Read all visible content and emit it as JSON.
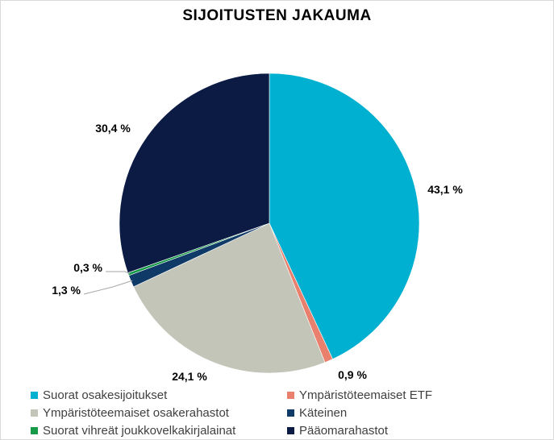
{
  "chart_data": {
    "type": "pie",
    "title": "SIJOITUSTEN JAKAUMA",
    "unit": "%",
    "slices": [
      {
        "name": "Suorat osakesijoitukset",
        "value": 43.1,
        "label": "43,1 %",
        "color": "#00b0d0"
      },
      {
        "name": "Ympäristöteemaiset ETF",
        "value": 0.9,
        "label": "0,9 %",
        "color": "#e9806e"
      },
      {
        "name": "Ympäristöteemaiset osakerahastot",
        "value": 24.1,
        "label": "24,1 %",
        "color": "#c3c5b9"
      },
      {
        "name": "Käteinen",
        "value": 1.3,
        "label": "1,3 %",
        "color": "#0f3966"
      },
      {
        "name": "Suorat vihreät joukkovelkakirjalainat",
        "value": 0.3,
        "label": "0,3 %",
        "color": "#169a47"
      },
      {
        "name": "Pääomarahastot",
        "value": 30.4,
        "label": "30,4 %",
        "color": "#0b1b44"
      }
    ],
    "legend": {
      "position": "bottom",
      "order": [
        "Suorat osakesijoitukset",
        "Ympäristöteemaiset ETF",
        "Ympäristöteemaiset osakerahastot",
        "Käteinen",
        "Suorat vihreät joukkovelkakirjalainat",
        "Pääomarahastot"
      ]
    }
  }
}
